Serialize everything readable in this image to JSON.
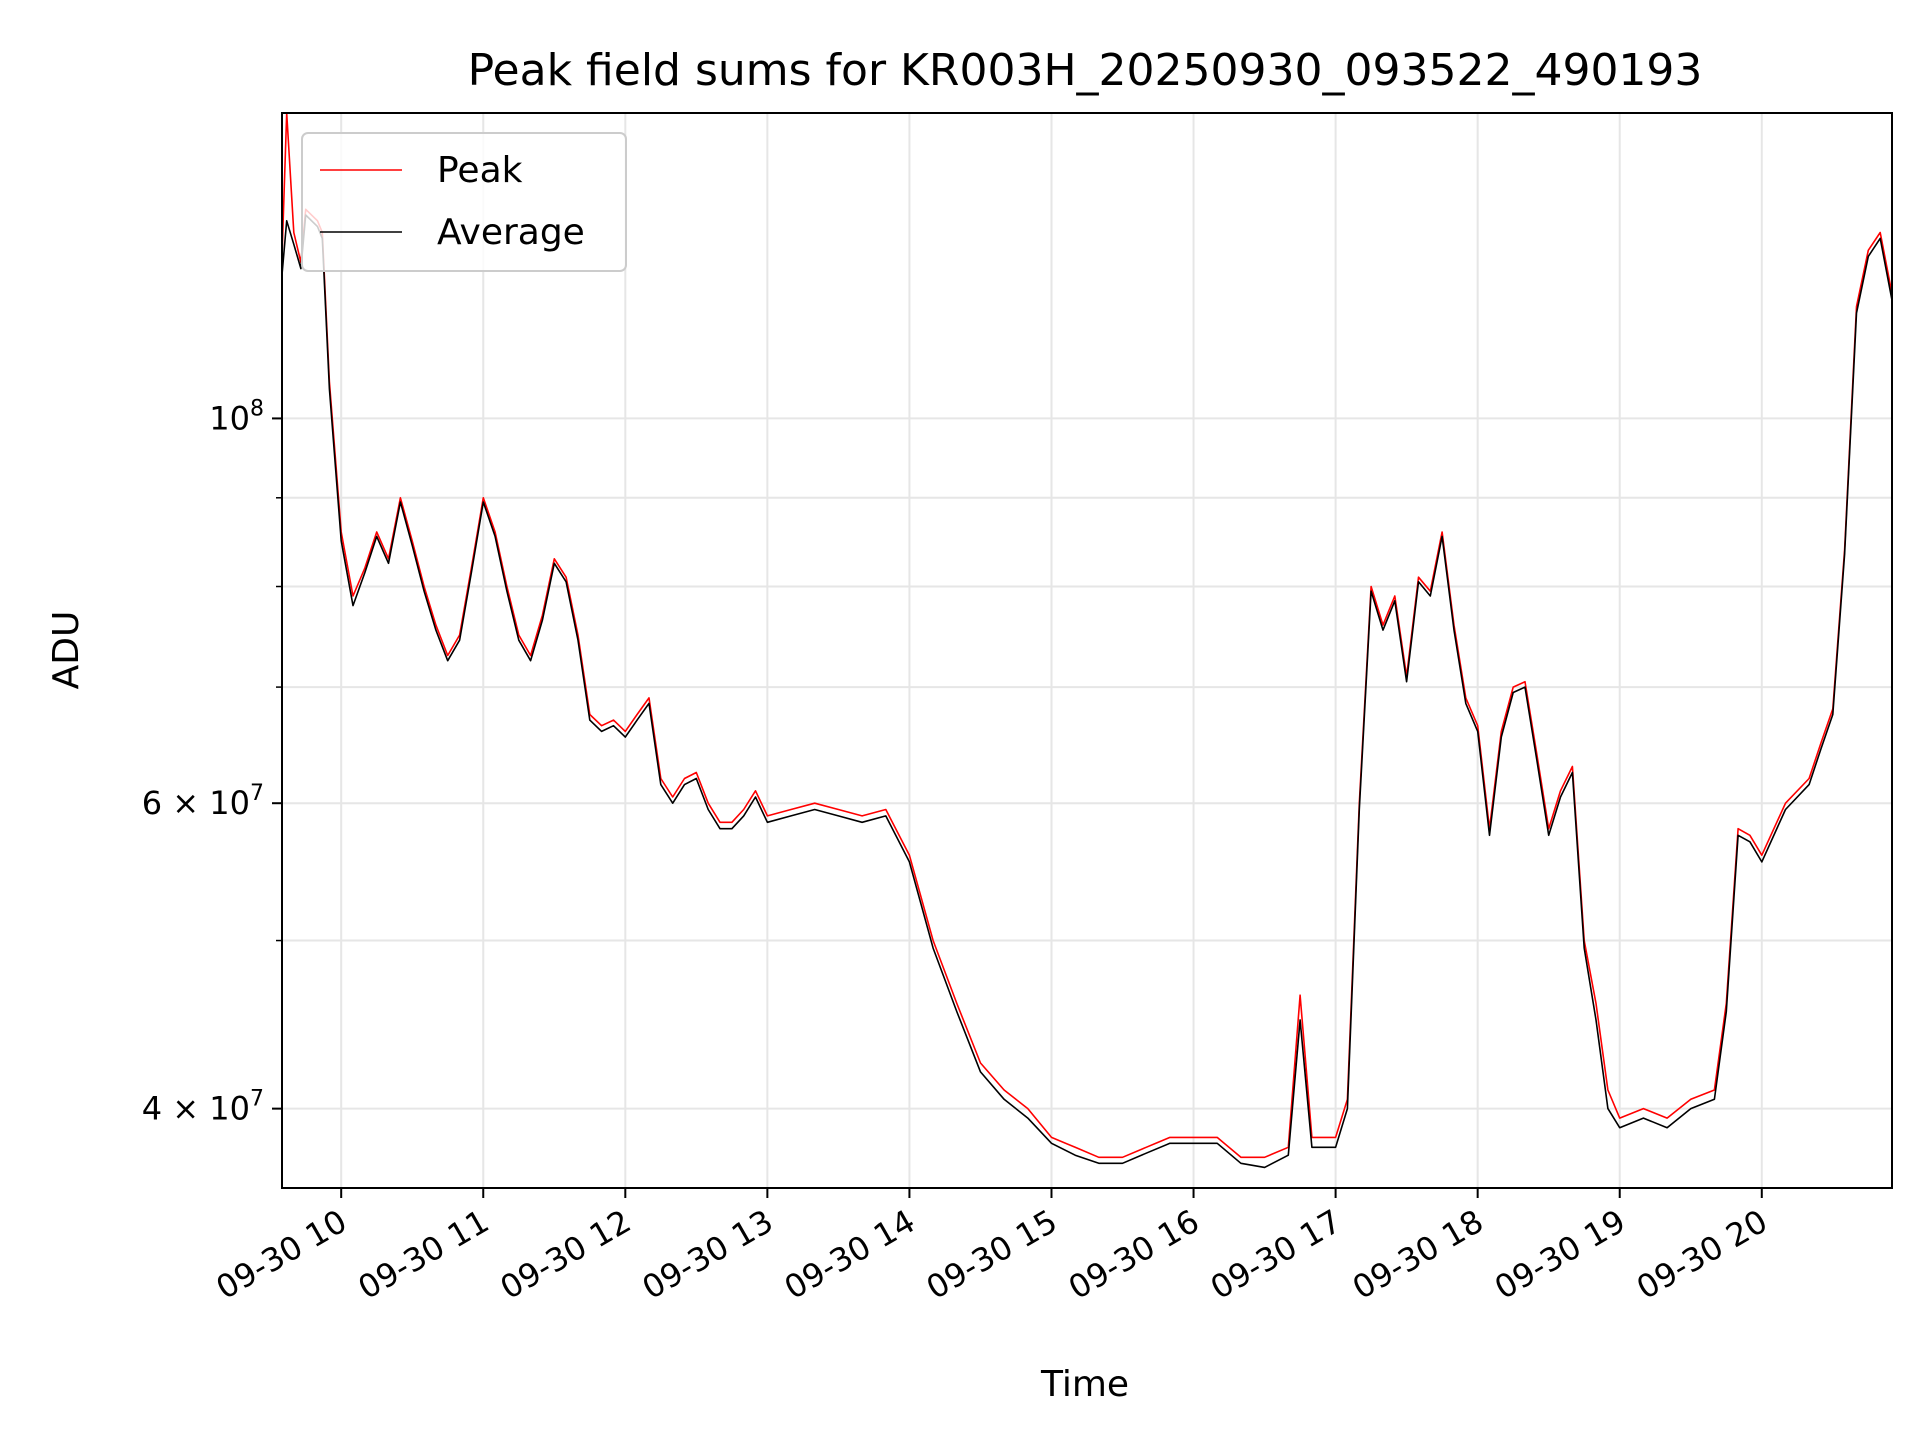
{
  "chart_data": {
    "type": "line",
    "title": "Peak field sums for KR003H_20250930_093522_490193",
    "xlabel": "Time",
    "ylabel": "ADU",
    "x_scale": "time",
    "y_scale": "log",
    "xlim": [
      "2025-09-30 09:35",
      "2025-09-30 20:55"
    ],
    "ylim": [
      36000000,
      150000000
    ],
    "grid": true,
    "legend_position": "top-left",
    "x_tick_labels": [
      "09-30 10",
      "09-30 11",
      "09-30 12",
      "09-30 13",
      "09-30 14",
      "09-30 15",
      "09-30 16",
      "09-30 17",
      "09-30 18",
      "09-30 19",
      "09-30 20"
    ],
    "x_ticks": [
      "2025-09-30 10:00",
      "2025-09-30 11:00",
      "2025-09-30 12:00",
      "2025-09-30 13:00",
      "2025-09-30 14:00",
      "2025-09-30 15:00",
      "2025-09-30 16:00",
      "2025-09-30 17:00",
      "2025-09-30 18:00",
      "2025-09-30 19:00",
      "2025-09-30 20:00"
    ],
    "y_tick_labels": [
      {
        "value": 40000000,
        "mantissa": "4",
        "times": "×",
        "base": "10",
        "exp": "7"
      },
      {
        "value": 60000000,
        "mantissa": "6",
        "times": "×",
        "base": "10",
        "exp": "7"
      },
      {
        "value": 100000000,
        "mantissa": "",
        "times": "",
        "base": "10",
        "exp": "8"
      }
    ],
    "y_minor_ticks": [
      50000000,
      70000000,
      80000000,
      90000000
    ],
    "x": [
      "2025-09-30 09:35",
      "2025-09-30 09:37",
      "2025-09-30 09:40",
      "2025-09-30 09:43",
      "2025-09-30 09:45",
      "2025-09-30 09:50",
      "2025-09-30 09:52",
      "2025-09-30 09:55",
      "2025-09-30 10:00",
      "2025-09-30 10:05",
      "2025-09-30 10:10",
      "2025-09-30 10:15",
      "2025-09-30 10:20",
      "2025-09-30 10:25",
      "2025-09-30 10:30",
      "2025-09-30 10:35",
      "2025-09-30 10:40",
      "2025-09-30 10:45",
      "2025-09-30 10:50",
      "2025-09-30 10:55",
      "2025-09-30 11:00",
      "2025-09-30 11:05",
      "2025-09-30 11:10",
      "2025-09-30 11:15",
      "2025-09-30 11:20",
      "2025-09-30 11:25",
      "2025-09-30 11:30",
      "2025-09-30 11:35",
      "2025-09-30 11:40",
      "2025-09-30 11:45",
      "2025-09-30 11:50",
      "2025-09-30 11:55",
      "2025-09-30 12:00",
      "2025-09-30 12:05",
      "2025-09-30 12:10",
      "2025-09-30 12:15",
      "2025-09-30 12:20",
      "2025-09-30 12:25",
      "2025-09-30 12:30",
      "2025-09-30 12:35",
      "2025-09-30 12:40",
      "2025-09-30 12:45",
      "2025-09-30 12:50",
      "2025-09-30 12:55",
      "2025-09-30 13:00",
      "2025-09-30 13:10",
      "2025-09-30 13:20",
      "2025-09-30 13:30",
      "2025-09-30 13:40",
      "2025-09-30 13:50",
      "2025-09-30 14:00",
      "2025-09-30 14:10",
      "2025-09-30 14:20",
      "2025-09-30 14:30",
      "2025-09-30 14:40",
      "2025-09-30 14:50",
      "2025-09-30 15:00",
      "2025-09-30 15:10",
      "2025-09-30 15:20",
      "2025-09-30 15:30",
      "2025-09-30 15:40",
      "2025-09-30 15:50",
      "2025-09-30 16:00",
      "2025-09-30 16:10",
      "2025-09-30 16:20",
      "2025-09-30 16:30",
      "2025-09-30 16:40",
      "2025-09-30 16:45",
      "2025-09-30 16:50",
      "2025-09-30 17:00",
      "2025-09-30 17:05",
      "2025-09-30 17:10",
      "2025-09-30 17:15",
      "2025-09-30 17:20",
      "2025-09-30 17:25",
      "2025-09-30 17:30",
      "2025-09-30 17:35",
      "2025-09-30 17:40",
      "2025-09-30 17:45",
      "2025-09-30 17:50",
      "2025-09-30 17:55",
      "2025-09-30 18:00",
      "2025-09-30 18:05",
      "2025-09-30 18:10",
      "2025-09-30 18:15",
      "2025-09-30 18:20",
      "2025-09-30 18:25",
      "2025-09-30 18:30",
      "2025-09-30 18:35",
      "2025-09-30 18:40",
      "2025-09-30 18:45",
      "2025-09-30 18:50",
      "2025-09-30 18:55",
      "2025-09-30 19:00",
      "2025-09-30 19:10",
      "2025-09-30 19:20",
      "2025-09-30 19:30",
      "2025-09-30 19:40",
      "2025-09-30 19:45",
      "2025-09-30 19:50",
      "2025-09-30 19:55",
      "2025-09-30 20:00",
      "2025-09-30 20:10",
      "2025-09-30 20:20",
      "2025-09-30 20:25",
      "2025-09-30 20:30",
      "2025-09-30 20:35",
      "2025-09-30 20:40",
      "2025-09-30 20:45",
      "2025-09-30 20:50",
      "2025-09-30 20:55"
    ],
    "series": [
      {
        "name": "Peak",
        "color": "#ff0000",
        "values": [
          124000000,
          150000000,
          128000000,
          123000000,
          132000000,
          130000000,
          128000000,
          105000000,
          86000000,
          79000000,
          82000000,
          86000000,
          83000000,
          90000000,
          85000000,
          80000000,
          76000000,
          73000000,
          75000000,
          82000000,
          90000000,
          86000000,
          80000000,
          75000000,
          73000000,
          77000000,
          83000000,
          81000000,
          75000000,
          67500000,
          66500000,
          67000000,
          66000000,
          67500000,
          69000000,
          62000000,
          60500000,
          62000000,
          62500000,
          60000000,
          58500000,
          58500000,
          59500000,
          61000000,
          59000000,
          59500000,
          60000000,
          59500000,
          59000000,
          59500000,
          56000000,
          50000000,
          46000000,
          42500000,
          41000000,
          40000000,
          38500000,
          38000000,
          37500000,
          37500000,
          38000000,
          38500000,
          38500000,
          38500000,
          37500000,
          37500000,
          38000000,
          46500000,
          38500000,
          38500000,
          40500000,
          60000000,
          80000000,
          76000000,
          79000000,
          71000000,
          81000000,
          79500000,
          86000000,
          76000000,
          69000000,
          66500000,
          58000000,
          66000000,
          70000000,
          70500000,
          64000000,
          58000000,
          61000000,
          63000000,
          50000000,
          46000000,
          41000000,
          39500000,
          40000000,
          39500000,
          40500000,
          41000000,
          46000000,
          58000000,
          57500000,
          56000000,
          60000000,
          62000000,
          65000000,
          68000000,
          84000000,
          116000000,
          125000000,
          128000000,
          118000000
        ]
      },
      {
        "name": "Average",
        "color": "#000000",
        "values": [
          121000000,
          130000000,
          126000000,
          122000000,
          131000000,
          129000000,
          127000000,
          104000000,
          85000000,
          78000000,
          81500000,
          85500000,
          82500000,
          89500000,
          84500000,
          79500000,
          75500000,
          72500000,
          74500000,
          81500000,
          89500000,
          85500000,
          79500000,
          74500000,
          72500000,
          76500000,
          82500000,
          80500000,
          74500000,
          67000000,
          66000000,
          66500000,
          65500000,
          67000000,
          68500000,
          61500000,
          60000000,
          61500000,
          62000000,
          59500000,
          58000000,
          58000000,
          59000000,
          60500000,
          58500000,
          59000000,
          59500000,
          59000000,
          58500000,
          59000000,
          55500000,
          49500000,
          45500000,
          42000000,
          40500000,
          39500000,
          38200000,
          37600000,
          37200000,
          37200000,
          37700000,
          38200000,
          38200000,
          38200000,
          37200000,
          37000000,
          37600000,
          45000000,
          38000000,
          38000000,
          40000000,
          59500000,
          79500000,
          75500000,
          78500000,
          70500000,
          80500000,
          79000000,
          85500000,
          75500000,
          68500000,
          66000000,
          57500000,
          65500000,
          69500000,
          70000000,
          63500000,
          57500000,
          60500000,
          62500000,
          49500000,
          45000000,
          40000000,
          39000000,
          39500000,
          39000000,
          40000000,
          40500000,
          45500000,
          57500000,
          57000000,
          55500000,
          59500000,
          61500000,
          64500000,
          67500000,
          83500000,
          115000000,
          124000000,
          127000000,
          117000000
        ]
      }
    ]
  }
}
